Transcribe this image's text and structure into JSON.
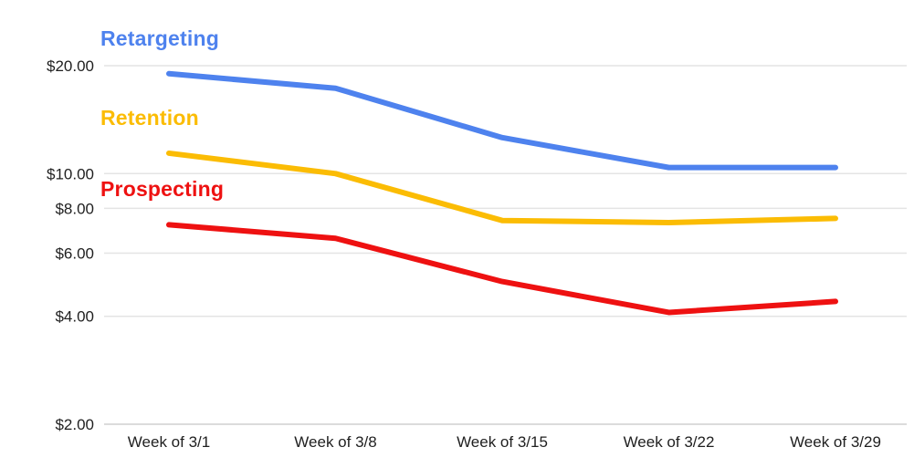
{
  "chart_data": {
    "type": "line",
    "title": "",
    "xlabel": "",
    "ylabel": "",
    "legend_position": "inline-labels-left",
    "grid": true,
    "x_categories": [
      "Week of 3/1",
      "Week of 3/8",
      "Week of 3/15",
      "Week of 3/22",
      "Week of 3/29"
    ],
    "series": [
      {
        "name": "Retargeting",
        "color": "#4e82ee",
        "values": [
          19.0,
          17.3,
          12.6,
          10.4,
          10.4
        ]
      },
      {
        "name": "Retention",
        "color": "#fbbc04",
        "values": [
          11.4,
          10.0,
          7.4,
          7.3,
          7.5
        ]
      },
      {
        "name": "Prospecting",
        "color": "#ee1111",
        "values": [
          7.2,
          6.6,
          5.0,
          4.1,
          4.4
        ]
      }
    ],
    "y_axis": {
      "scale": "log",
      "range": [
        2,
        22
      ],
      "ticks": [
        {
          "value": 20,
          "label": "$20.00"
        },
        {
          "value": 10,
          "label": "$10.00"
        },
        {
          "value": 8,
          "label": "$8.00"
        },
        {
          "value": 6,
          "label": "$6.00"
        },
        {
          "value": 4,
          "label": "$4.00"
        },
        {
          "value": 2,
          "label": "$2.00"
        }
      ]
    },
    "colors": {
      "gridline": "#e4e4e4",
      "baseline": "#cfcfcf",
      "axis_text": "#1f1f1f"
    }
  }
}
